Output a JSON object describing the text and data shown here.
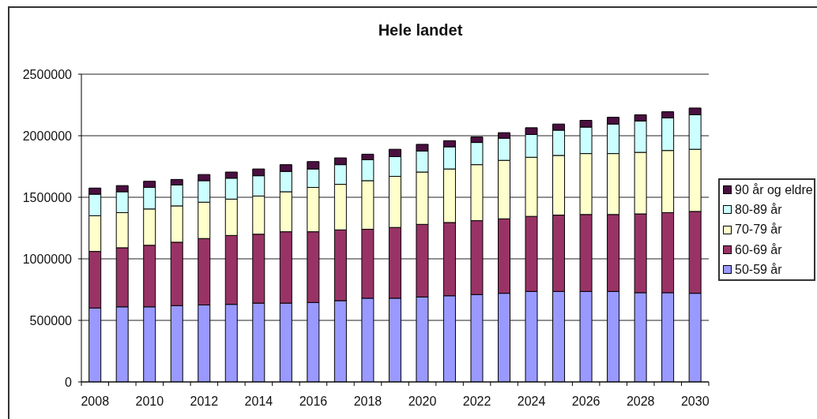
{
  "chart_data": {
    "type": "bar",
    "title": "Hele landet",
    "stacked": true,
    "grid": "y",
    "legend": "right",
    "categories": [
      "2008",
      null,
      "2010",
      null,
      "2012",
      null,
      "2014",
      null,
      "2016",
      null,
      "2018",
      null,
      "2020",
      null,
      "2022",
      null,
      "2024",
      null,
      "2026",
      null,
      "2028",
      null,
      "2030"
    ],
    "ylim": [
      0,
      2500000
    ],
    "yticks": [
      0,
      500000,
      1000000,
      1500000,
      2000000,
      2500000
    ],
    "series": [
      {
        "name": "50-59 år",
        "color": "#9999ff",
        "values": [
          600000,
          610000,
          610000,
          620000,
          625000,
          630000,
          640000,
          640000,
          645000,
          660000,
          680000,
          680000,
          690000,
          700000,
          710000,
          720000,
          735000,
          735000,
          735000,
          735000,
          725000,
          725000,
          720000
        ]
      },
      {
        "name": "60-69 år",
        "color": "#993366",
        "values": [
          460000,
          480000,
          500000,
          515000,
          540000,
          560000,
          560000,
          580000,
          575000,
          575000,
          560000,
          575000,
          590000,
          595000,
          600000,
          605000,
          610000,
          620000,
          625000,
          625000,
          640000,
          650000,
          665000
        ]
      },
      {
        "name": "70-79 år",
        "color": "#ffffcc",
        "values": [
          290000,
          285000,
          295000,
          295000,
          295000,
          295000,
          310000,
          325000,
          360000,
          370000,
          395000,
          415000,
          425000,
          435000,
          455000,
          475000,
          480000,
          485000,
          495000,
          495000,
          500000,
          505000,
          505000
        ]
      },
      {
        "name": "80-89 år",
        "color": "#ccffff",
        "values": [
          175000,
          170000,
          175000,
          170000,
          175000,
          170000,
          165000,
          165000,
          150000,
          160000,
          170000,
          160000,
          170000,
          180000,
          180000,
          180000,
          185000,
          205000,
          215000,
          240000,
          255000,
          265000,
          280000
        ]
      },
      {
        "name": "90 år og eldre",
        "color": "#4a1040",
        "values": [
          50000,
          50000,
          50000,
          45000,
          50000,
          50000,
          55000,
          55000,
          60000,
          55000,
          45000,
          60000,
          55000,
          50000,
          45000,
          45000,
          55000,
          50000,
          55000,
          55000,
          50000,
          50000,
          55000
        ]
      }
    ]
  }
}
